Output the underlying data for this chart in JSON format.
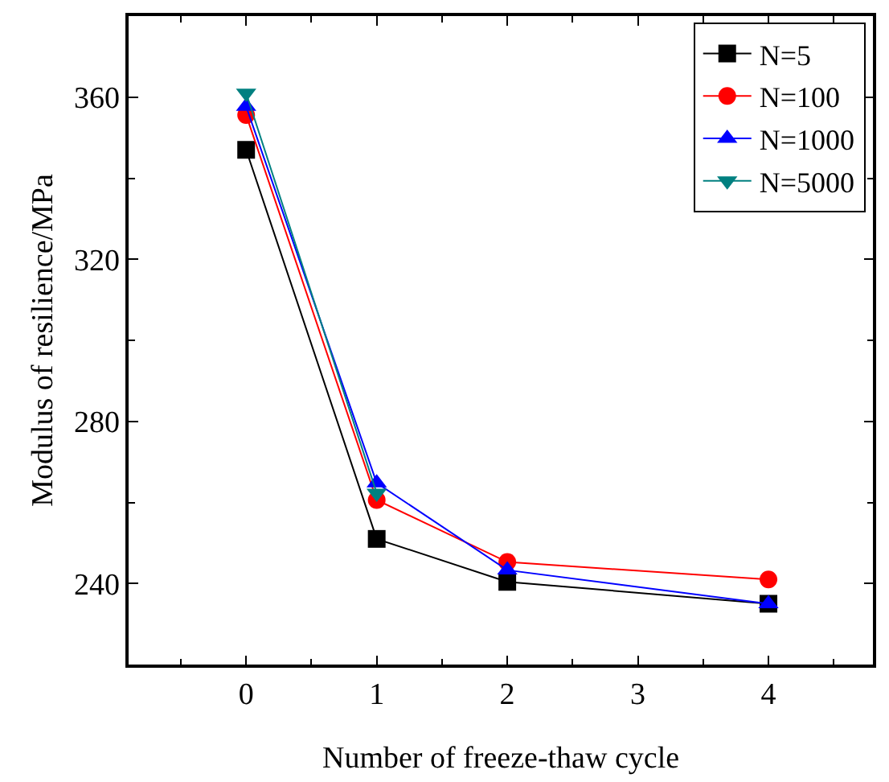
{
  "chart_data": {
    "type": "line",
    "xlabel": "Number of freeze-thaw cycle",
    "ylabel": "Modulus of resilience/MPa",
    "x": [
      0,
      1,
      2,
      4
    ],
    "xlim": [
      -0.9,
      4.8
    ],
    "xticks": [
      0,
      1,
      2,
      3,
      4
    ],
    "ylim": [
      220,
      380
    ],
    "yticks": [
      240,
      280,
      320,
      360
    ],
    "legend": "top right",
    "line_style": "solid",
    "series": [
      {
        "name": "N=5",
        "color": "#000000",
        "marker": "square",
        "values": [
          347,
          251,
          240.4,
          235
        ]
      },
      {
        "name": "N=100",
        "color": "#ff0000",
        "marker": "circle",
        "values": [
          355.6,
          260.6,
          245.3,
          241
        ]
      },
      {
        "name": "N=1000",
        "color": "#0000ff",
        "marker": "triangle",
        "values": [
          357.7,
          264.8,
          243.3,
          235
        ]
      },
      {
        "name": "N=5000",
        "color": "#008080",
        "marker": "triangle-down",
        "values": [
          361,
          262.3,
          null,
          null
        ]
      }
    ]
  }
}
